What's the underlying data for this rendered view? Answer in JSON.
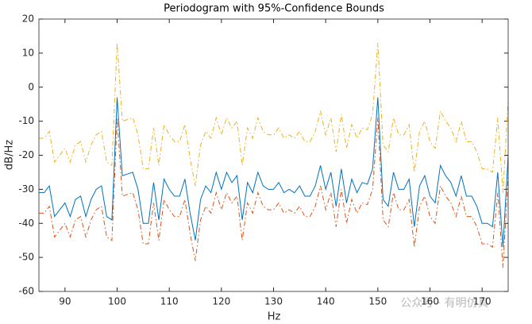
{
  "chart_data": {
    "type": "line",
    "title": "Periodogram with 95%-Confidence Bounds",
    "xlabel": "Hz",
    "ylabel": "dB/Hz",
    "watermark": "公众号 · 有明仿真",
    "xlim": [
      85,
      175
    ],
    "xticks": [
      90,
      100,
      110,
      120,
      130,
      140,
      150,
      160,
      170
    ],
    "ylim": [
      -60,
      20
    ],
    "yticks": [
      -60,
      -50,
      -40,
      -30,
      -20,
      -10,
      0,
      10,
      20
    ],
    "x": [
      85,
      86,
      87,
      88,
      89,
      90,
      91,
      92,
      93,
      94,
      95,
      96,
      97,
      98,
      99,
      100,
      101,
      102,
      103,
      104,
      105,
      106,
      107,
      108,
      109,
      110,
      111,
      112,
      113,
      114,
      115,
      116,
      117,
      118,
      119,
      120,
      121,
      122,
      123,
      124,
      125,
      126,
      127,
      128,
      129,
      130,
      131,
      132,
      133,
      134,
      135,
      136,
      137,
      138,
      139,
      140,
      141,
      142,
      143,
      144,
      145,
      146,
      147,
      148,
      149,
      150,
      151,
      152,
      153,
      154,
      155,
      156,
      157,
      158,
      159,
      160,
      161,
      162,
      163,
      164,
      165,
      166,
      167,
      168,
      169,
      170,
      171,
      172,
      173,
      174,
      175
    ],
    "series": [
      {
        "color": "#0072bd",
        "line_style": "solid",
        "values": [
          -31,
          -31,
          -29,
          -38,
          -36,
          -34,
          -38,
          -33,
          -32,
          -38,
          -33,
          -30,
          -29,
          -38,
          -39,
          -3,
          -26,
          -25.5,
          -25,
          -30,
          -40,
          -40,
          -28,
          -39,
          -27,
          -30,
          -32,
          -32,
          -27,
          -37,
          -45,
          -33,
          -29,
          -31,
          -25,
          -30,
          -25,
          -28,
          -26,
          -39,
          -28,
          -31,
          -25,
          -29,
          -30,
          -30,
          -28,
          -31,
          -30,
          -31,
          -29,
          -32,
          -32,
          -29,
          -23,
          -30,
          -25,
          -35,
          -24,
          -34,
          -27,
          -31,
          -28,
          -28.5,
          -24,
          -3,
          -33,
          -35,
          -25,
          -30,
          -30,
          -27,
          -41,
          -29,
          -26,
          -32,
          -34,
          -23,
          -26,
          -28,
          -32,
          -26,
          -32,
          -32,
          -35,
          -40,
          -40,
          -41,
          -25,
          -47,
          -20
        ]
      },
      {
        "color": "#d95319",
        "line_style": "dashdot",
        "values": [
          -37,
          -37,
          -35,
          -44,
          -42,
          -40,
          -44,
          -39,
          -38,
          -44,
          -39,
          -36,
          -35,
          -44,
          -45,
          -9,
          -32,
          -31.5,
          -31,
          -36,
          -46,
          -46,
          -34,
          -45,
          -33,
          -36,
          -38,
          -38,
          -33,
          -43,
          -51,
          -39,
          -35,
          -37,
          -31,
          -36,
          -31,
          -34,
          -32,
          -45,
          -34,
          -37,
          -31,
          -35,
          -36,
          -36,
          -34,
          -37,
          -36,
          -37,
          -35,
          -38,
          -38,
          -35,
          -29,
          -36,
          -31,
          -41,
          -30,
          -40,
          -33,
          -37,
          -34,
          -34.5,
          -30,
          -9,
          -39,
          -41,
          -31,
          -36,
          -36,
          -33,
          -47,
          -35,
          -32,
          -38,
          -40,
          -29,
          -32,
          -34,
          -38,
          -32,
          -38,
          -38,
          -41,
          -46,
          -46,
          -47,
          -31,
          -53,
          -26
        ]
      },
      {
        "color": "#edb120",
        "line_style": "dashdot",
        "values": [
          -15,
          -15,
          -13,
          -22,
          -20,
          -18,
          -22,
          -17,
          -16,
          -22,
          -17,
          -14,
          -13,
          -22,
          -23,
          13,
          -10,
          -9.5,
          -9,
          -14,
          -24,
          -24,
          -12,
          -23,
          -11,
          -14,
          -16,
          -16,
          -11,
          -21,
          -29,
          -17,
          -13,
          -15,
          -9,
          -14,
          -9,
          -12,
          -10,
          -23,
          -12,
          -15,
          -9,
          -13,
          -14,
          -14,
          -12,
          -15,
          -14,
          -15,
          -13,
          -16,
          -16,
          -13,
          -7,
          -14,
          -9,
          -19,
          -8,
          -18,
          -11,
          -15,
          -12,
          -12.5,
          -8,
          13,
          -17,
          -19,
          -9,
          -14,
          -14,
          -11,
          -25,
          -13,
          -10,
          -16,
          -18,
          -7,
          -10,
          -12,
          -16,
          -10,
          -16,
          -16,
          -19,
          -24,
          -24,
          -25,
          -9,
          -31,
          -4
        ]
      }
    ]
  }
}
